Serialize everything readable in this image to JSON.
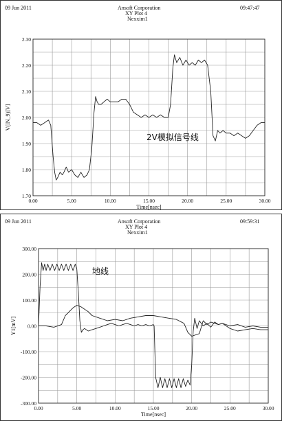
{
  "charts": [
    {
      "header": {
        "date": "09 Jun 2011",
        "company": "Ansoft Corporation",
        "plot": "XY Plot 4",
        "sim": "Nexxim1",
        "time": "09:47:47"
      },
      "annotation": "2V模拟信号线",
      "xlabel": "Time[nsec]",
      "ylabel": "V(IN_9)[V]"
    },
    {
      "header": {
        "date": "09 Jun 2011",
        "company": "Ansoft Corporation",
        "plot": "XY Plot 4",
        "sim": "Nexxim1",
        "time": "09:59:31"
      },
      "annotation": "地线",
      "xlabel": "Time[nsec]",
      "ylabel": "Y1[mV]"
    }
  ],
  "chart_data": [
    {
      "type": "line",
      "xlim": [
        0,
        30
      ],
      "ylim": [
        1.7,
        2.3
      ],
      "xticks": [
        "0.00",
        "5.00",
        "10.00",
        "15.00",
        "20.00",
        "25.00",
        "30.00"
      ],
      "yticks": [
        "1.70",
        "1.80",
        "1.90",
        "2.00",
        "2.10",
        "2.20",
        "2.30"
      ],
      "grid": true,
      "series": [
        {
          "x": [
            0,
            0.5,
            1,
            1.5,
            2,
            2.3,
            2.6,
            2.8,
            3.0,
            3.2,
            3.5,
            3.8,
            4.0,
            4.3,
            4.6,
            5.0,
            5.4,
            5.8,
            6.2,
            6.6,
            7.0,
            7.3,
            7.6,
            7.9,
            8.1,
            8.3,
            8.5,
            8.8,
            9.2,
            9.6,
            10,
            10.5,
            11,
            11.5,
            12,
            12.5,
            13,
            13.5,
            14,
            14.5,
            15,
            15.5,
            16,
            16.5,
            17,
            17.5,
            17.8,
            18.1,
            18.3,
            18.6,
            19.0,
            19.4,
            19.8,
            20.2,
            20.6,
            21,
            21.4,
            21.8,
            22.2,
            22.6,
            23.0,
            23.3,
            23.6,
            23.9,
            24.2,
            24.6,
            25,
            25.5,
            26,
            26.5,
            27,
            27.5,
            28,
            28.5,
            29,
            29.5,
            30
          ],
          "y": [
            1.98,
            1.98,
            1.97,
            1.98,
            1.99,
            1.97,
            1.85,
            1.79,
            1.76,
            1.77,
            1.79,
            1.78,
            1.79,
            1.81,
            1.79,
            1.8,
            1.78,
            1.77,
            1.79,
            1.77,
            1.78,
            1.8,
            1.88,
            2.02,
            2.08,
            2.06,
            2.05,
            2.05,
            2.06,
            2.07,
            2.06,
            2.06,
            2.06,
            2.07,
            2.07,
            2.05,
            2.02,
            2.01,
            2.0,
            2.01,
            2.0,
            2.01,
            2.0,
            2.01,
            2.0,
            2.0,
            2.05,
            2.19,
            2.24,
            2.21,
            2.23,
            2.2,
            2.22,
            2.2,
            2.21,
            2.2,
            2.22,
            2.21,
            2.22,
            2.2,
            2.1,
            1.93,
            1.91,
            1.95,
            1.94,
            1.95,
            1.94,
            1.94,
            1.93,
            1.94,
            1.93,
            1.92,
            1.93,
            1.95,
            1.97,
            1.98,
            1.98
          ]
        }
      ]
    },
    {
      "type": "line",
      "xlim": [
        0,
        30
      ],
      "ylim": [
        -300,
        300
      ],
      "xticks": [
        "0.00",
        "5.00",
        "10.00",
        "15.00",
        "20.00",
        "25.00",
        "30.00"
      ],
      "yticks": [
        "-300.00",
        "-200.00",
        "-100.00",
        "0.00",
        "100.00",
        "200.00",
        "300.00"
      ],
      "grid": true,
      "series": [
        {
          "x": [
            0,
            0.2,
            0.4,
            0.6,
            0.8,
            1.0,
            1.2,
            1.5,
            1.8,
            2.1,
            2.4,
            2.7,
            3.0,
            3.3,
            3.6,
            3.9,
            4.2,
            4.5,
            4.8,
            5.0,
            5.2,
            5.4,
            5.6,
            5.8,
            6.0,
            6.5,
            7,
            7.5,
            8,
            8.5,
            9,
            9.5,
            10,
            10.5,
            11,
            11.5,
            12,
            12.5,
            13,
            13.5,
            14,
            14.5,
            15,
            15.1,
            15.3,
            15.6,
            15.9,
            16.2,
            16.5,
            16.8,
            17.1,
            17.4,
            17.7,
            18.0,
            18.3,
            18.6,
            18.9,
            19.2,
            19.5,
            19.8,
            20.0,
            20.2,
            20.4,
            20.7,
            21,
            21.5,
            22,
            22.5,
            23,
            23.5,
            24,
            25,
            26,
            27,
            28,
            29,
            30
          ],
          "y": [
            0,
            150,
            245,
            215,
            240,
            215,
            240,
            215,
            240,
            215,
            240,
            215,
            240,
            215,
            240,
            215,
            240,
            215,
            240,
            220,
            130,
            20,
            -25,
            -15,
            -10,
            -20,
            -15,
            -10,
            -5,
            0,
            5,
            10,
            5,
            0,
            5,
            10,
            5,
            0,
            5,
            0,
            5,
            0,
            5,
            0,
            -200,
            -240,
            -200,
            -240,
            -205,
            -240,
            -205,
            -240,
            -205,
            -240,
            -205,
            -240,
            -205,
            -235,
            -210,
            -230,
            -150,
            -20,
            30,
            -10,
            20,
            0,
            10,
            -5,
            15,
            5,
            10,
            0,
            5,
            -5,
            0,
            -5,
            -5
          ]
        },
        {
          "x": [
            0,
            1,
            2,
            3,
            3.5,
            4,
            4.5,
            5,
            5.5,
            6,
            6.5,
            7,
            8,
            9,
            10,
            11,
            12,
            13,
            14,
            15,
            16,
            17,
            18,
            19,
            19.5,
            20,
            21,
            21.5,
            22,
            22.5,
            23,
            23.5,
            24,
            25,
            26,
            27,
            28,
            29,
            30
          ],
          "y": [
            0,
            0,
            -5,
            5,
            40,
            55,
            70,
            80,
            75,
            65,
            55,
            40,
            30,
            20,
            25,
            20,
            30,
            35,
            40,
            40,
            35,
            30,
            25,
            10,
            -25,
            -40,
            -30,
            20,
            5,
            15,
            10,
            5,
            10,
            -10,
            -20,
            -15,
            -10,
            -15,
            -15
          ]
        }
      ]
    }
  ]
}
